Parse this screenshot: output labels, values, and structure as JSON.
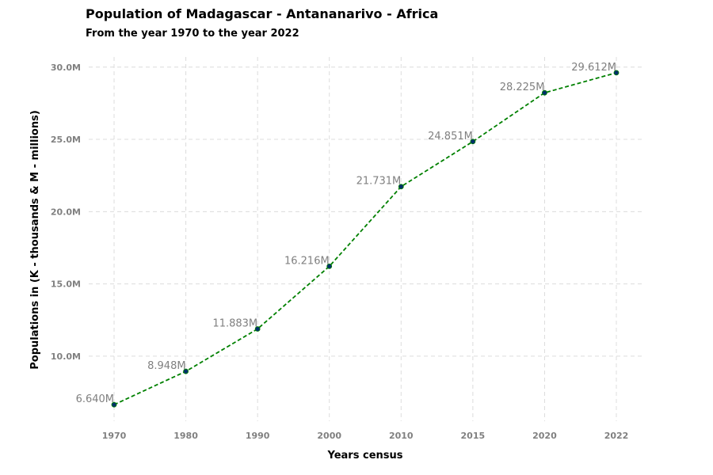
{
  "chart_data": {
    "type": "line",
    "title": "Population of Madagascar - Antananarivo - Africa",
    "subtitle": "From the year 1970 to the year 2022",
    "xlabel": "Years census",
    "ylabel": "Populations in (K - thousands & M - millions)",
    "categories": [
      "1970",
      "1980",
      "1990",
      "2000",
      "2010",
      "2015",
      "2020",
      "2022"
    ],
    "series": [
      {
        "values": [
          6.64,
          8.948,
          11.883,
          16.216,
          21.731,
          24.851,
          28.225,
          29.612
        ],
        "labels": [
          "6.640M",
          "8.948M",
          "11.883M",
          "16.216M",
          "21.731M",
          "24.851M",
          "28.225M",
          "29.612M"
        ]
      }
    ],
    "yticks": [
      10,
      15,
      20,
      25,
      30
    ],
    "ytick_labels": [
      "10.0M",
      "15.0M",
      "20.0M",
      "25.0M",
      "30.0M"
    ],
    "ylim": [
      5.5,
      30.7
    ],
    "grid": true,
    "line_color": "#008000",
    "marker_color": "#00306b"
  }
}
